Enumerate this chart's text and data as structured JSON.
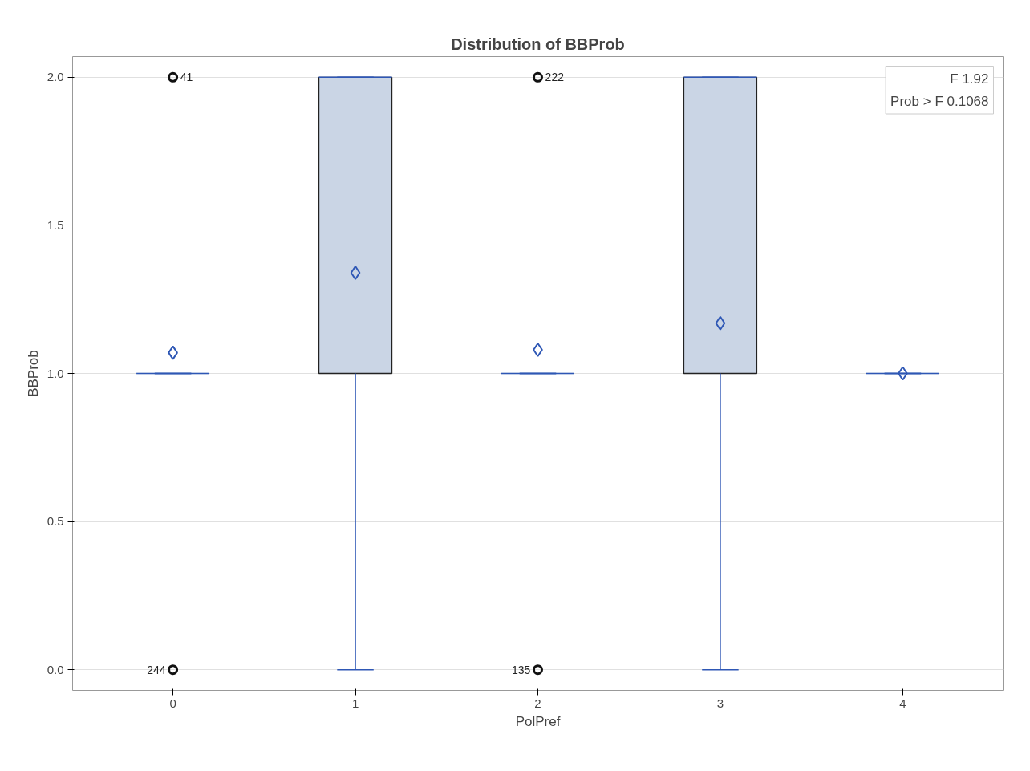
{
  "chart_data": {
    "type": "box",
    "title": "Distribution of BBProb",
    "xlabel": "PolPref",
    "ylabel": "BBProb",
    "categories": [
      "0",
      "1",
      "2",
      "3",
      "4"
    ],
    "series": [
      {
        "color": "#cad5e5",
        "boxes": [
          {
            "low": 1,
            "q1": 1,
            "median": 1,
            "q3": 1,
            "high": 1,
            "mean": 1.07,
            "outliers": [
              2,
              0
            ]
          },
          {
            "low": 0,
            "q1": 1,
            "median": 2,
            "q3": 2,
            "high": 2,
            "mean": 1.34
          },
          {
            "low": 1,
            "q1": 1,
            "median": 1,
            "q3": 1,
            "high": 1,
            "mean": 1.08,
            "outliers": [
              2,
              0
            ]
          },
          {
            "low": 0,
            "q1": 1,
            "median": 2,
            "q3": 2,
            "high": 2,
            "mean": 1.17
          },
          {
            "low": 1,
            "q1": 1,
            "median": 1,
            "q3": 1,
            "high": 1,
            "mean": 1.0
          }
        ]
      }
    ],
    "marker": "diamond",
    "ylim": [
      -0.07,
      2.07
    ],
    "yticks": [
      {
        "value": 0,
        "label": "0.0"
      },
      {
        "value": 0.5,
        "label": "0.5"
      },
      {
        "value": 1,
        "label": "1.0"
      },
      {
        "value": 1.5,
        "label": "1.5"
      },
      {
        "value": 2,
        "label": "2.0"
      }
    ],
    "grid": "y",
    "annotations": [
      "F 1.92",
      "Prob > F 0.1068",
      "41",
      "244",
      "222",
      "135"
    ]
  }
}
